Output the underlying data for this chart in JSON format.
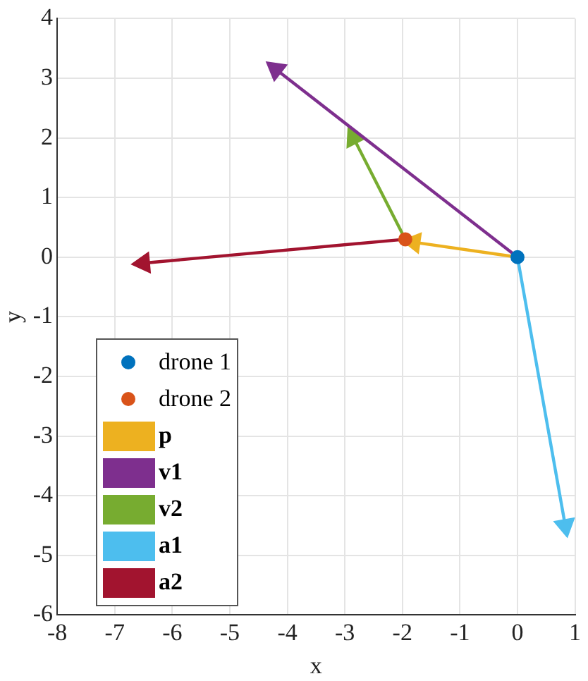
{
  "chart_data": {
    "type": "scatter",
    "xlabel": "x",
    "ylabel": "y",
    "xlim": [
      -8,
      1
    ],
    "xticks": [
      -8,
      -7,
      -6,
      -5,
      -4,
      -3,
      -2,
      -1,
      0,
      1
    ],
    "ylim": [
      -6,
      4
    ],
    "yticks": [
      -6,
      -5,
      -4,
      -3,
      -2,
      -1,
      0,
      1,
      2,
      3,
      4
    ],
    "grid": true,
    "legend": "bottom left",
    "series": [
      {
        "name": "drone 1",
        "marker": "circle",
        "color": "#0072bd",
        "x": [
          0
        ],
        "values": [
          0
        ]
      },
      {
        "name": "drone 2",
        "marker": "circle",
        "color": "#d95319",
        "x": [
          -1.95
        ],
        "values": [
          0.3
        ]
      },
      {
        "name": "p",
        "type": "line",
        "marker": "triangle",
        "color": "#edb120",
        "x": [
          0,
          -1.8
        ],
        "values": [
          0,
          0.25
        ]
      },
      {
        "name": "v1",
        "type": "line",
        "marker": "triangle",
        "color": "#7e2f8e",
        "x": [
          0,
          -4.2
        ],
        "values": [
          0,
          3.15
        ]
      },
      {
        "name": "v2",
        "type": "line",
        "marker": "triangle",
        "color": "#77ac30",
        "x": [
          -1.95,
          -2.85
        ],
        "values": [
          0.3,
          2.0
        ]
      },
      {
        "name": "a1",
        "type": "line",
        "marker": "triangle",
        "color": "#4dbeee",
        "x": [
          0,
          0.83
        ],
        "values": [
          0,
          -4.5
        ]
      },
      {
        "name": "a2",
        "type": "line",
        "marker": "triangle",
        "color": "#a2142f",
        "x": [
          -1.95,
          -6.5
        ],
        "values": [
          0.3,
          -0.1
        ]
      }
    ]
  }
}
